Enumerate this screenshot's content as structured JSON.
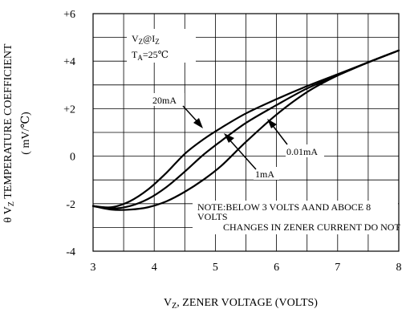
{
  "chart_data": {
    "type": "line",
    "ylabel": {
      "theta": "θ V",
      "sub": "Z",
      "rest": "  TEMPERATURE COEFFICIENT",
      "unit": "( mV/℃)"
    },
    "xlabel": {
      "main": "V",
      "sub": "Z",
      "rest": ", ZENER VOLTAGE   (VOLTS)"
    },
    "xlim": [
      3,
      8
    ],
    "ylim": [
      -4,
      6
    ],
    "x_ticks": [
      {
        "value": 3,
        "label": "3"
      },
      {
        "value": 4,
        "label": "4"
      },
      {
        "value": 5,
        "label": "5"
      },
      {
        "value": 6,
        "label": "6"
      },
      {
        "value": 7,
        "label": "7"
      },
      {
        "value": 8,
        "label": "8"
      }
    ],
    "y_ticks": [
      {
        "value": 6,
        "label": "+6"
      },
      {
        "value": 4,
        "label": "+4"
      },
      {
        "value": 2,
        "label": "+2"
      },
      {
        "value": 0,
        "label": "0"
      },
      {
        "value": -2,
        "label": "-2"
      },
      {
        "value": -4,
        "label": "-4"
      }
    ],
    "grid": true,
    "x_minor_step": 0.5,
    "y_minor_step": 1,
    "condition": {
      "line1_main": "V",
      "line1_sub": "Z",
      "line1_at": "@I",
      "line1_sub2": "Z",
      "line2_main": "T",
      "line2_sub": "A",
      "line2_rest": "=25℃"
    },
    "note": {
      "line1": "NOTE:BELOW 3 VOLTS AAND ABOCE 8",
      "line2": "VOLTS",
      "line3": "CHANGES IN ZENER CURRENT DO NOT"
    },
    "series": [
      {
        "name": "20mA",
        "x": [
          3.0,
          3.3,
          3.6,
          3.9,
          4.2,
          4.5,
          4.8,
          5.1,
          5.5,
          6.0,
          6.5,
          7.0,
          7.5,
          8.0
        ],
        "y": [
          -2.1,
          -2.15,
          -1.9,
          -1.4,
          -0.7,
          0.1,
          0.7,
          1.2,
          1.8,
          2.4,
          2.95,
          3.45,
          3.95,
          4.45
        ]
      },
      {
        "name": "1mA",
        "x": [
          3.0,
          3.3,
          3.6,
          3.9,
          4.2,
          4.5,
          4.8,
          5.1,
          5.5,
          6.0,
          6.5,
          7.0,
          7.5,
          8.0
        ],
        "y": [
          -2.1,
          -2.2,
          -2.1,
          -1.8,
          -1.3,
          -0.65,
          0.05,
          0.65,
          1.4,
          2.15,
          2.85,
          3.4,
          3.95,
          4.45
        ]
      },
      {
        "name": "0.01mA",
        "x": [
          3.0,
          3.3,
          3.6,
          3.9,
          4.2,
          4.5,
          4.8,
          5.1,
          5.5,
          6.0,
          6.5,
          7.0,
          7.5,
          8.0
        ],
        "y": [
          -2.1,
          -2.25,
          -2.25,
          -2.15,
          -1.9,
          -1.5,
          -1.0,
          -0.4,
          0.6,
          1.75,
          2.7,
          3.4,
          3.95,
          4.45
        ]
      }
    ],
    "legend_labels": [
      {
        "series": "20mA",
        "text": "20mA"
      },
      {
        "series": "1mA",
        "text": "1mA"
      },
      {
        "series": "0.01mA",
        "text": "0.01mA"
      }
    ]
  }
}
